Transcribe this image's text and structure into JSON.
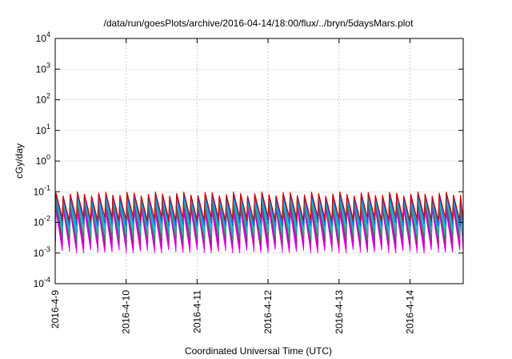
{
  "chart_data": {
    "type": "line",
    "title": "/data/run/goesPlots/archive/2016-04-14/18:00/flux/../bryn/5daysMars.plot",
    "xlabel": "Coordinated Universal Time (UTC)",
    "ylabel": "cGy/day",
    "yscale": "log",
    "ylim": [
      0.0001,
      10000
    ],
    "y_ticks": [
      {
        "base": "10",
        "exp": "-4"
      },
      {
        "base": "10",
        "exp": "-3"
      },
      {
        "base": "10",
        "exp": "-2"
      },
      {
        "base": "10",
        "exp": "-1"
      },
      {
        "base": "10",
        "exp": "0"
      },
      {
        "base": "10",
        "exp": "1"
      },
      {
        "base": "10",
        "exp": "2"
      },
      {
        "base": "10",
        "exp": "3"
      },
      {
        "base": "10",
        "exp": "4"
      }
    ],
    "x_ticks": [
      "2016-4-9",
      "2016-4-10",
      "2016-4-11",
      "2016-4-12",
      "2016-4-13",
      "2016-4-14"
    ],
    "xlim": [
      "2016-04-09T00:00",
      "2016-04-14T18:00"
    ],
    "grid": true,
    "orbit_period_hours": 2.4,
    "series": [
      {
        "color": "#ff00ff",
        "peak": 0.025,
        "trough": 0.0012
      },
      {
        "color": "#cc00cc",
        "peak": 0.03,
        "trough": 0.0016
      },
      {
        "color": "#a0218c",
        "peak": 0.04,
        "trough": 0.0022
      },
      {
        "color": "#2e8b57",
        "peak": 0.045,
        "trough": 0.003
      },
      {
        "color": "#20b2aa",
        "peak": 0.055,
        "trough": 0.0045
      },
      {
        "color": "#00bfff",
        "peak": 0.065,
        "trough": 0.0065
      },
      {
        "color": "#1e5fd0",
        "peak": 0.075,
        "trough": 0.009
      },
      {
        "color": "#d00000",
        "peak": 0.085,
        "trough": 0.013
      }
    ]
  }
}
